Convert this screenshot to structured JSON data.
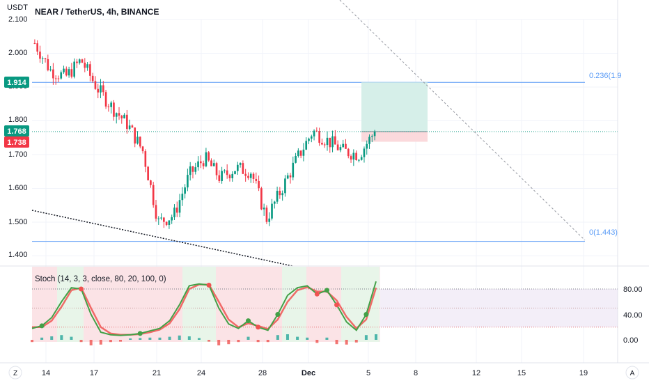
{
  "header": {
    "title": "NEAR / TetherUS, 4h, BINANCE",
    "quote_label": "USDT"
  },
  "price_pane": {
    "y_ticks": [
      "2.100",
      "2.000",
      "1.900",
      "1.800",
      "1.700",
      "1.600",
      "1.500",
      "1.400"
    ],
    "price_tags": [
      {
        "label": "1.914",
        "color": "#089981"
      },
      {
        "label": "1.768",
        "color": "#089981"
      },
      {
        "label": "1.738",
        "color": "#f23645"
      }
    ],
    "fib_labels": [
      "0.236(1.9",
      "0(1.443)"
    ]
  },
  "indicator": {
    "title": "Stoch (14, 3, 3, close, 80, 20, 100, 0)",
    "y_ticks": [
      "80.00",
      "40.00",
      "0.00"
    ]
  },
  "x_axis": {
    "ticks": [
      "14",
      "17",
      "21",
      "24",
      "28",
      "Dec",
      "5",
      "8",
      "12",
      "15",
      "19"
    ],
    "left_button": "Z",
    "right_button": "A"
  },
  "colors": {
    "up": "#089981",
    "down": "#f23645",
    "fib_line": "#5b9cf6",
    "profit_zone": "#d6efe9",
    "loss_zone": "#fbd9dc",
    "stoch_k": "#43a047",
    "stoch_d": "#ef5350"
  },
  "chart_data": {
    "type": "candlestick",
    "title": "NEAR / TetherUS, 4h, BINANCE",
    "price_range": [
      1.38,
      2.12
    ],
    "close_path": [
      [
        "Nov 13",
        2.03
      ],
      [
        "Nov 14",
        1.95
      ],
      [
        "Nov 15",
        1.93
      ],
      [
        "Nov 16",
        1.98
      ],
      [
        "Nov 17",
        1.9
      ],
      [
        "Nov 18",
        1.84
      ],
      [
        "Nov 19",
        1.79
      ],
      [
        "Nov 20",
        1.71
      ],
      [
        "Nov 21",
        1.5
      ],
      [
        "Nov 22",
        1.52
      ],
      [
        "Nov 23",
        1.64
      ],
      [
        "Nov 24",
        1.69
      ],
      [
        "Nov 25",
        1.63
      ],
      [
        "Nov 26",
        1.66
      ],
      [
        "Nov 27",
        1.65
      ],
      [
        "Nov 28",
        1.51
      ],
      [
        "Nov 29",
        1.6
      ],
      [
        "Nov 30",
        1.69
      ],
      [
        "Dec 1",
        1.77
      ],
      [
        "Dec 2",
        1.74
      ],
      [
        "Dec 3",
        1.71
      ],
      [
        "Dec 4",
        1.7
      ],
      [
        "Dec 5",
        1.768
      ]
    ],
    "horizontal_levels": [
      {
        "label": "0.236(1.9",
        "value": 1.914
      },
      {
        "label": "0(1.443)",
        "value": 1.443
      }
    ],
    "position": {
      "entry": 1.768,
      "target": 1.914,
      "stop": 1.738
    },
    "stochastic": {
      "params": "14, 3, 3, close, 80, 20, 100, 0",
      "upper_band": 80,
      "lower_band": 20,
      "k": [
        18,
        22,
        35,
        60,
        82,
        80,
        40,
        12,
        8,
        7,
        8,
        10,
        14,
        18,
        30,
        55,
        85,
        88,
        86,
        50,
        25,
        18,
        30,
        20,
        15,
        40,
        70,
        82,
        85,
        72,
        78,
        55,
        28,
        15,
        40,
        92
      ],
      "d": [
        20,
        20,
        30,
        52,
        78,
        82,
        50,
        20,
        10,
        8,
        8,
        9,
        12,
        16,
        26,
        48,
        80,
        87,
        87,
        60,
        32,
        20,
        26,
        22,
        17,
        32,
        60,
        78,
        83,
        76,
        76,
        62,
        36,
        18,
        32,
        82
      ]
    }
  }
}
